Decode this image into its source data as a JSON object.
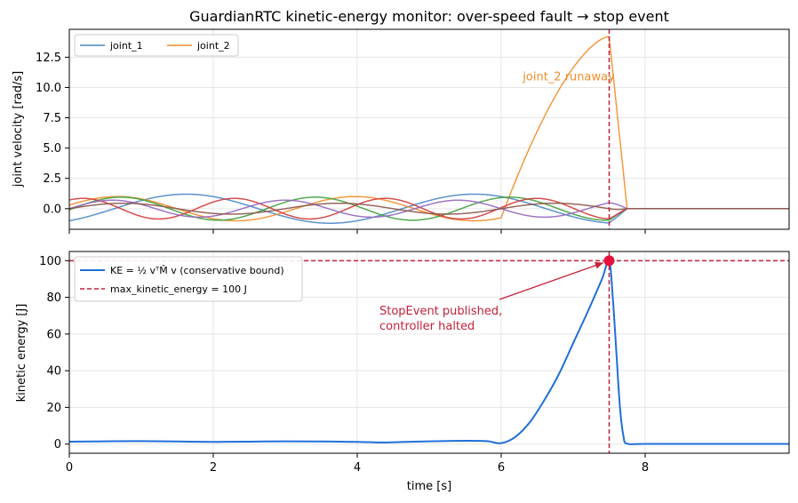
{
  "chart_data": [
    {
      "type": "line",
      "title": "GuardianRTC kinetic-energy monitor: over-speed fault → stop event",
      "xlabel": "",
      "ylabel": "joint velocity [rad/s]",
      "xlim": [
        0,
        10
      ],
      "ylim": [
        -1.7,
        14.8
      ],
      "xticks": [
        0,
        2,
        4,
        6,
        8
      ],
      "yticks": [
        0.0,
        2.5,
        5.0,
        7.5,
        10.0,
        12.5
      ],
      "ytick_labels": [
        "0.0",
        "2.5",
        "5.0",
        "7.5",
        "10.0",
        "12.5"
      ],
      "grid": true,
      "legend_position": "top-left",
      "legend": [
        {
          "name": "joint_1",
          "color": "#4a86c5"
        },
        {
          "name": "joint_2",
          "color": "#f28e2b"
        }
      ],
      "series": [
        {
          "name": "joint_1",
          "color": "#4a86c5",
          "amplitude": 1.2,
          "period": 4.0,
          "phase": -0.98,
          "offset": 0.0
        },
        {
          "name": "joint_2",
          "color": "#f28e2b",
          "amplitude": 1.0,
          "period": 3.3,
          "phase": 0.3,
          "offset": 0.0,
          "runaway": {
            "start": 6.0,
            "peak_time": 7.5,
            "peak": 14.2,
            "end": 7.75
          }
        },
        {
          "name": "",
          "color": "#3e9e3e",
          "amplitude": 0.95,
          "period": 2.7,
          "phase": -0.1,
          "offset": 0.0
        },
        {
          "name": "",
          "color": "#d23a3a",
          "amplitude": 0.85,
          "period": 2.1,
          "phase": 1.0,
          "offset": 0.0
        },
        {
          "name": "",
          "color": "#9467bd",
          "amplitude": 0.7,
          "period": 2.4,
          "phase": 0.0,
          "offset": 0.0
        },
        {
          "name": "",
          "color": "#8c564b",
          "amplitude": 0.45,
          "period": 3.0,
          "phase": 0.0,
          "offset": 0.0
        }
      ],
      "stop_line_x": 7.5,
      "stop_line_color": "#c4213b",
      "annotations": [
        {
          "text": "joint_2 runaway",
          "x": 6.3,
          "y": 10.6,
          "color": "#f28e2b"
        }
      ]
    },
    {
      "type": "line",
      "title": "",
      "xlabel": "time [s]",
      "ylabel": "kinetic energy [J]",
      "xlim": [
        0,
        10
      ],
      "ylim": [
        -5,
        105
      ],
      "xticks": [
        0,
        2,
        4,
        6,
        8
      ],
      "yticks": [
        0,
        20,
        40,
        60,
        80,
        100
      ],
      "grid": true,
      "legend_position": "top-left",
      "legend": [
        {
          "name": "KE = ½ vᵀM̂ v (conservative bound)",
          "color": "#1f6fd9",
          "style": "solid"
        },
        {
          "name": "max_kinetic_energy = 100 J",
          "color": "#c4213b",
          "style": "dashed"
        }
      ],
      "series": [
        {
          "name": "KE = ½ vᵀM̂ v (conservative bound)",
          "color": "#1f6fd9",
          "x": [
            0,
            0.5,
            1,
            1.5,
            2,
            2.5,
            3,
            3.5,
            4,
            4.3,
            4.6,
            5,
            5.5,
            5.8,
            6.0,
            6.2,
            6.4,
            6.6,
            6.8,
            7.0,
            7.2,
            7.4,
            7.5,
            7.55,
            7.6,
            7.65,
            7.7,
            7.75,
            8,
            9,
            10
          ],
          "y": [
            1.3,
            1.5,
            1.6,
            1.4,
            1.2,
            1.3,
            1.5,
            1.4,
            1.2,
            0.9,
            1.1,
            1.5,
            1.8,
            1.6,
            0.5,
            4,
            12,
            24,
            38,
            55,
            72,
            90,
            100,
            80,
            50,
            20,
            4,
            0.2,
            0.1,
            0.1,
            0.1
          ]
        }
      ],
      "threshold_y": 100,
      "stop_line_x": 7.5,
      "stop_point": {
        "x": 7.5,
        "y": 100
      },
      "annotations": [
        {
          "text": "StopEvent published,",
          "color": "#c4213b"
        },
        {
          "text": "controller halted",
          "color": "#c4213b"
        }
      ]
    }
  ]
}
